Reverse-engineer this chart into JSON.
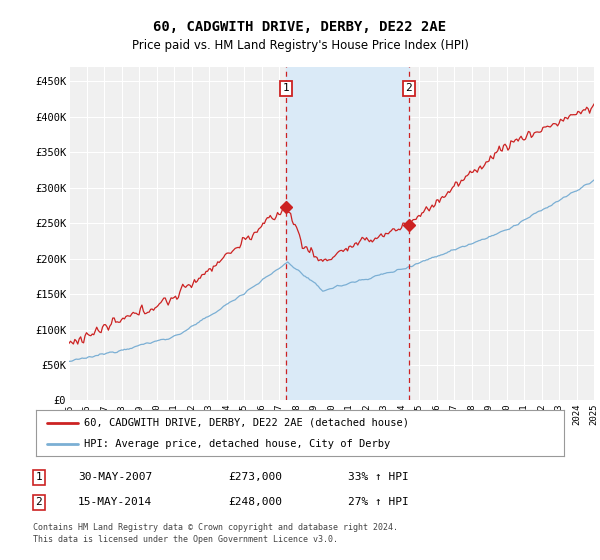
{
  "title": "60, CADGWITH DRIVE, DERBY, DE22 2AE",
  "subtitle": "Price paid vs. HM Land Registry's House Price Index (HPI)",
  "ylim": [
    0,
    470000
  ],
  "yticks": [
    0,
    50000,
    100000,
    150000,
    200000,
    250000,
    300000,
    350000,
    400000,
    450000
  ],
  "ytick_labels": [
    "£0",
    "£50K",
    "£100K",
    "£150K",
    "£200K",
    "£250K",
    "£300K",
    "£350K",
    "£400K",
    "£450K"
  ],
  "hpi_color": "#7bafd4",
  "price_color": "#cc2222",
  "marker1_price": 273000,
  "marker2_price": 248000,
  "legend_line1": "60, CADGWITH DRIVE, DERBY, DE22 2AE (detached house)",
  "legend_line2": "HPI: Average price, detached house, City of Derby",
  "footnote": "Contains HM Land Registry data © Crown copyright and database right 2024.\nThis data is licensed under the Open Government Licence v3.0.",
  "background_color": "#ffffff",
  "plot_bg_color": "#f0f0f0",
  "shaded_region_color": "#daeaf7",
  "grid_color": "#ffffff"
}
